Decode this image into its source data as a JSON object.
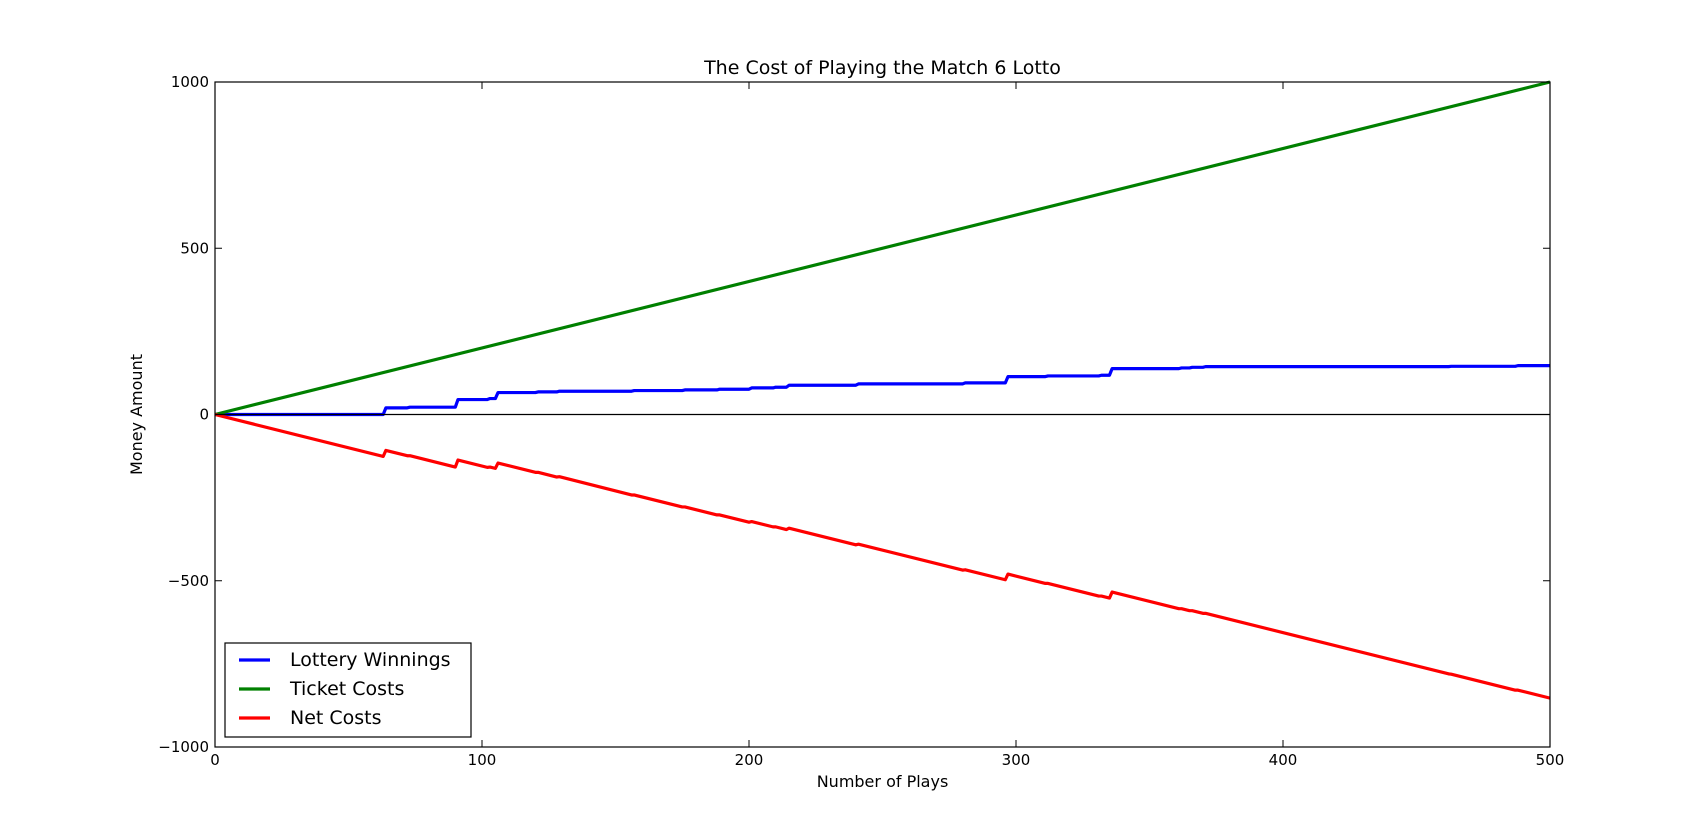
{
  "chart_data": {
    "type": "line",
    "title": "The Cost of Playing the Match 6 Lotto",
    "xlabel": "Number of Plays",
    "ylabel": "Money Amount",
    "xlim": [
      0,
      500
    ],
    "ylim": [
      -1000,
      1000
    ],
    "xticks": [
      0,
      100,
      200,
      300,
      400,
      500
    ],
    "xtick_labels": [
      "0",
      "100",
      "200",
      "300",
      "400",
      "500"
    ],
    "yticks": [
      -1000,
      -500,
      0,
      500,
      1000
    ],
    "ytick_labels": [
      "−1000",
      "−500",
      "0",
      "500",
      "1000"
    ],
    "grid": false,
    "zero_line": true,
    "legend_position": "lower-left",
    "series": [
      {
        "name": "Lottery Winnings",
        "color": "#0000ff",
        "x": [
          0,
          63,
          64,
          72,
          73,
          90,
          91,
          102,
          103,
          105,
          106,
          120,
          121,
          128,
          129,
          156,
          157,
          175,
          176,
          188,
          189,
          200,
          201,
          209,
          210,
          214,
          215,
          240,
          241,
          280,
          281,
          296,
          297,
          311,
          312,
          331,
          332,
          335,
          336,
          361,
          362,
          365,
          366,
          370,
          371,
          462,
          463,
          487,
          488,
          500
        ],
        "y": [
          0,
          0,
          20,
          20,
          22,
          22,
          45,
          45,
          48,
          48,
          66,
          66,
          68,
          68,
          70,
          70,
          72,
          72,
          74,
          74,
          76,
          76,
          80,
          80,
          82,
          82,
          88,
          88,
          92,
          92,
          95,
          95,
          114,
          114,
          116,
          116,
          118,
          118,
          138,
          138,
          140,
          140,
          142,
          142,
          144,
          144,
          145,
          145,
          147,
          147
        ]
      },
      {
        "name": "Ticket Costs",
        "color": "#008000",
        "x": [
          0,
          500
        ],
        "y": [
          0,
          1000
        ]
      },
      {
        "name": "Net Costs",
        "color": "#ff0000",
        "x": [
          0,
          63,
          64,
          72,
          73,
          90,
          91,
          102,
          103,
          105,
          106,
          120,
          121,
          128,
          129,
          156,
          157,
          175,
          176,
          188,
          189,
          200,
          201,
          209,
          210,
          214,
          215,
          240,
          241,
          280,
          281,
          296,
          297,
          311,
          312,
          331,
          332,
          335,
          336,
          361,
          362,
          365,
          366,
          370,
          371,
          462,
          463,
          487,
          488,
          500
        ],
        "y": [
          0,
          -126,
          -108,
          -124,
          -124,
          -158,
          -137,
          -159,
          -158,
          -162,
          -146,
          -174,
          -174,
          -188,
          -187,
          -242,
          -242,
          -278,
          -278,
          -302,
          -302,
          -324,
          -322,
          -338,
          -338,
          -346,
          -342,
          -392,
          -390,
          -468,
          -467,
          -497,
          -480,
          -508,
          -508,
          -546,
          -546,
          -552,
          -534,
          -584,
          -584,
          -590,
          -590,
          -598,
          -598,
          -780,
          -781,
          -829,
          -829,
          -853
        ]
      }
    ]
  }
}
